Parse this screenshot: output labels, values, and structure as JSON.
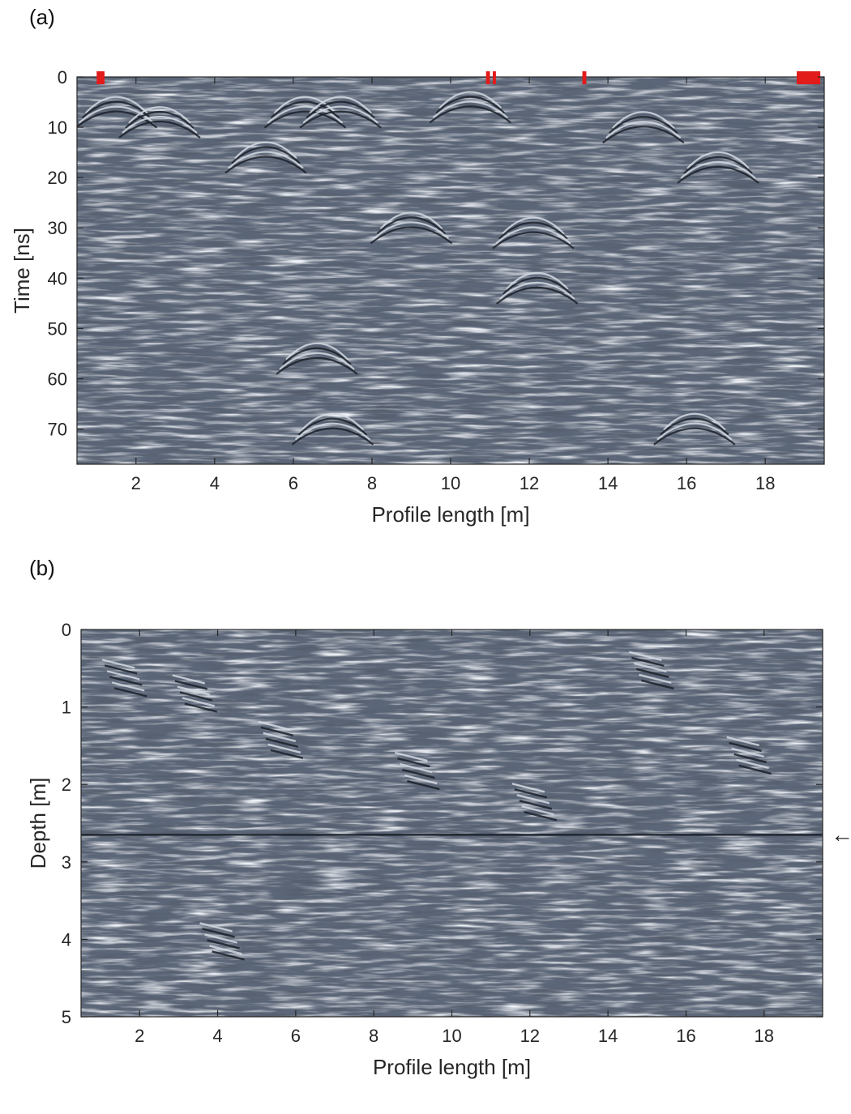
{
  "panels": {
    "a": {
      "label": "(a)"
    },
    "b": {
      "label": "(b)"
    }
  },
  "colors": {
    "background": "#5b6678",
    "light": "#d5dbe3",
    "dark": "#1b2029",
    "marker": "#e21b1b",
    "axis": "#262626"
  },
  "chart_data": [
    {
      "type": "heatmap",
      "title": "",
      "xlabel": "Profile length [m]",
      "ylabel": "Time [ns]",
      "xlim": [
        0.5,
        19.5
      ],
      "ylim": [
        0,
        77
      ],
      "y_reversed": true,
      "grid": false,
      "x_ticks": [
        2,
        4,
        6,
        8,
        10,
        12,
        14,
        16,
        18
      ],
      "y_ticks": [
        0,
        10,
        20,
        30,
        40,
        50,
        60,
        70
      ],
      "markers": [
        {
          "x_start": 1.0,
          "x_end": 1.2
        },
        {
          "x_start": 10.9,
          "x_end": 11.0
        },
        {
          "x_start": 11.07,
          "x_end": 11.15
        },
        {
          "x_start": 13.35,
          "x_end": 13.45
        },
        {
          "x_start": 18.8,
          "x_end": 19.4
        }
      ],
      "hyperbolae": [
        {
          "x": 1.5,
          "t": 3
        },
        {
          "x": 2.6,
          "t": 5
        },
        {
          "x": 6.3,
          "t": 3
        },
        {
          "x": 7.2,
          "t": 3
        },
        {
          "x": 5.3,
          "t": 12
        },
        {
          "x": 9.0,
          "t": 26
        },
        {
          "x": 12.1,
          "t": 27
        },
        {
          "x": 12.2,
          "t": 38
        },
        {
          "x": 14.9,
          "t": 6
        },
        {
          "x": 16.8,
          "t": 14
        },
        {
          "x": 10.5,
          "t": 2
        },
        {
          "x": 7.0,
          "t": 66
        },
        {
          "x": 6.6,
          "t": 52
        },
        {
          "x": 16.2,
          "t": 66
        }
      ]
    },
    {
      "type": "heatmap",
      "title": "",
      "xlabel": "Profile length [m]",
      "ylabel": "Depth [m]",
      "xlim": [
        0.5,
        19.5
      ],
      "ylim": [
        0,
        5
      ],
      "y_reversed": true,
      "grid": false,
      "x_ticks": [
        2,
        4,
        6,
        8,
        10,
        12,
        14,
        16,
        18
      ],
      "y_ticks": [
        0,
        1,
        2,
        3,
        4,
        5
      ],
      "reflector_depth": 2.65,
      "arrow": {
        "symbol": "←",
        "depth": 2.65
      },
      "features": [
        {
          "x": 1.5,
          "d": 0.6
        },
        {
          "x": 5.5,
          "d": 1.4
        },
        {
          "x": 9.0,
          "d": 1.8
        },
        {
          "x": 12.0,
          "d": 2.2
        },
        {
          "x": 15.0,
          "d": 0.5
        },
        {
          "x": 4.0,
          "d": 4.0
        },
        {
          "x": 3.3,
          "d": 0.8
        },
        {
          "x": 17.5,
          "d": 1.6
        }
      ]
    }
  ]
}
